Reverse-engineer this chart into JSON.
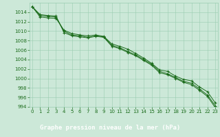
{
  "title": "Graphe pression niveau de la mer (hPa)",
  "x_values": [
    0,
    1,
    2,
    3,
    4,
    5,
    6,
    7,
    8,
    9,
    10,
    11,
    12,
    13,
    14,
    15,
    16,
    17,
    18,
    19,
    20,
    21,
    22,
    23
  ],
  "series": [
    [
      1015.2,
      1013.0,
      1012.8,
      1012.7,
      1010.2,
      1009.5,
      1009.2,
      1009.0,
      1009.2,
      1008.9,
      1007.3,
      1006.8,
      1006.2,
      1005.3,
      1004.3,
      1003.2,
      1001.8,
      1001.5,
      1000.5,
      999.8,
      999.5,
      998.2,
      997.2,
      994.8
    ],
    [
      1015.2,
      1013.3,
      1013.1,
      1013.0,
      1010.0,
      1009.2,
      1009.0,
      1008.7,
      1009.0,
      1008.8,
      1007.0,
      1006.5,
      1005.7,
      1005.0,
      1004.0,
      1003.0,
      1001.5,
      1001.0,
      1000.2,
      999.4,
      999.0,
      997.8,
      996.5,
      994.2
    ],
    [
      1015.2,
      1013.5,
      1013.3,
      1013.2,
      1009.7,
      1009.0,
      1008.8,
      1008.6,
      1008.9,
      1008.7,
      1006.8,
      1006.3,
      1005.5,
      1004.8,
      1003.8,
      1002.8,
      1001.2,
      1000.8,
      1000.0,
      999.2,
      998.7,
      997.5,
      996.2,
      993.8
    ]
  ],
  "ylim": [
    994,
    1016
  ],
  "xlim": [
    -0.3,
    23.3
  ],
  "yticks": [
    994,
    996,
    998,
    1000,
    1002,
    1004,
    1006,
    1008,
    1010,
    1012,
    1014
  ],
  "xticks": [
    0,
    1,
    2,
    3,
    4,
    5,
    6,
    7,
    8,
    9,
    10,
    11,
    12,
    13,
    14,
    15,
    16,
    17,
    18,
    19,
    20,
    21,
    22,
    23
  ],
  "line_color": "#1a6b1a",
  "marker_color": "#1a6b1a",
  "bg_color": "#cce8d8",
  "grid_color": "#99ccb0",
  "title_bg": "#1a6b1a",
  "title_fg": "#ffffff",
  "tick_fontsize": 5.0,
  "title_fontsize": 6.5
}
